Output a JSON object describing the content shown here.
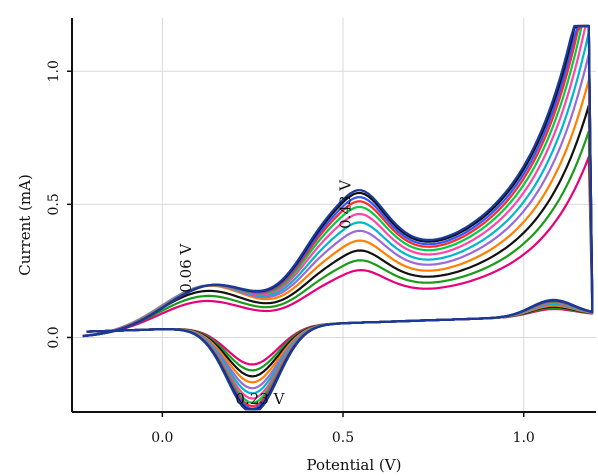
{
  "chart_data": {
    "type": "line",
    "title": "",
    "xlabel": "Potential (V)",
    "ylabel": "Current (mA)",
    "xlim": [
      -0.25,
      1.2
    ],
    "ylim": [
      -0.28,
      1.2
    ],
    "x_ticks": [
      {
        "value": 0.0,
        "label": "0.0"
      },
      {
        "value": 0.5,
        "label": "0.5"
      },
      {
        "value": 1.0,
        "label": "1.0"
      }
    ],
    "y_ticks": [
      {
        "value": 0.0,
        "label": "0.0"
      },
      {
        "value": 0.5,
        "label": "0.5"
      },
      {
        "value": 1.0,
        "label": "1.0"
      }
    ],
    "grid": true,
    "legend": "none",
    "annotations": [
      {
        "text": "0.06 V",
        "x": 0.08,
        "y": 0.26,
        "rotate": -90
      },
      {
        "text": "0.43 V",
        "x": 0.52,
        "y": 0.5,
        "rotate": -90
      },
      {
        "text": "0.23 V",
        "x": 0.27,
        "y": -0.25,
        "rotate": 0
      }
    ],
    "peaks": {
      "anodic_1_V": 0.06,
      "anodic_2_V": 0.43,
      "cathodic_V": 0.23
    },
    "series": [
      {
        "color": "#e8007a",
        "scale": 0.45
      },
      {
        "color": "#1a9a1a",
        "scale": 0.52
      },
      {
        "color": "#111111",
        "scale": 0.59
      },
      {
        "color": "#ff7f00",
        "scale": 0.66
      },
      {
        "color": "#9a6ad6",
        "scale": 0.73
      },
      {
        "color": "#00b8c8",
        "scale": 0.79
      },
      {
        "color": "#ff44aa",
        "scale": 0.85
      },
      {
        "color": "#00cc44",
        "scale": 0.9
      },
      {
        "color": "#ff2a2a",
        "scale": 0.94
      },
      {
        "color": "#3355ff",
        "scale": 0.97
      },
      {
        "color": "#111111",
        "scale": 1.0
      },
      {
        "color": "#1a3a9a",
        "scale": 1.02
      }
    ]
  }
}
